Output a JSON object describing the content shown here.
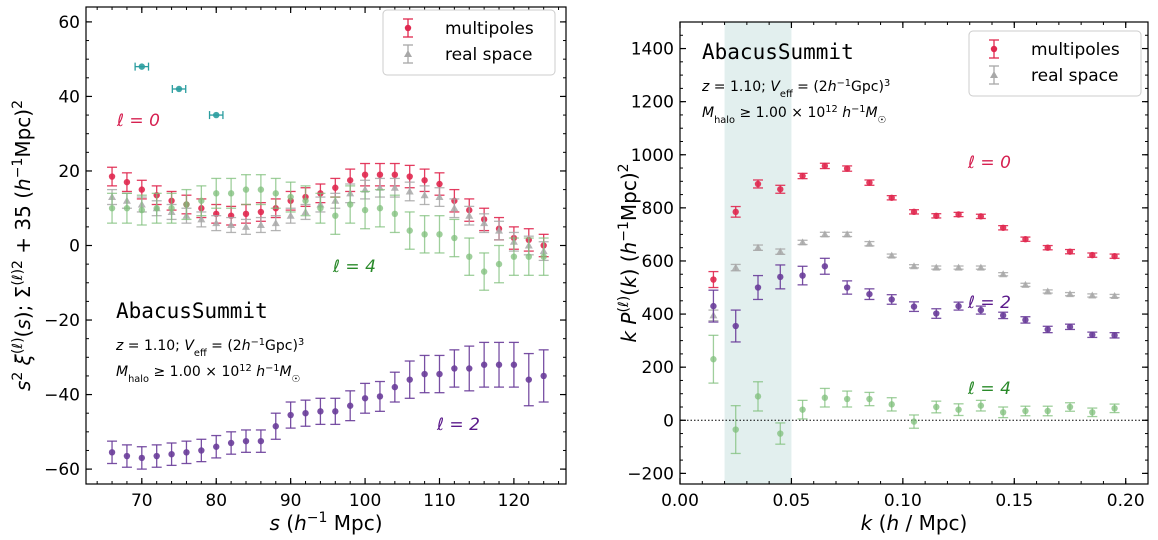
{
  "colors": {
    "multipoles": "#e0284f",
    "real_space": "#a8a8a8",
    "l0_real": "#2a9d9f",
    "l2": "#6a3d9a",
    "l4": "#7fbf7b",
    "l0_label": "#d62050",
    "l2_label": "#5b1a8b",
    "l4_label": "#2a8a2a",
    "shade": "#cfe5e3"
  },
  "chart_data": [
    {
      "type": "scatter",
      "panel": "left",
      "xlabel": "s (h⁻¹ Mpc)",
      "ylabel": "s² ξ^(ℓ)(s); Σ^(ℓ)2 + 35 (h⁻¹Mpc)²",
      "xlim": [
        62.5,
        127
      ],
      "ylim": [
        -64,
        64
      ],
      "xticks": [
        70,
        80,
        90,
        100,
        110,
        120
      ],
      "yticks": [
        -60,
        -40,
        -20,
        0,
        20,
        40,
        60
      ],
      "legend": {
        "position": "top-right",
        "entries": [
          "multipoles",
          "real space"
        ]
      },
      "title_block": {
        "title": "AbacusSummit",
        "line1": "z = 1.10; V_eff = (2h⁻¹Gpc)³",
        "line2": "M_halo ≥ 1.00 × 10¹² h⁻¹M☉"
      },
      "multipole_labels": {
        "l0": "ℓ = 0",
        "l2": "ℓ = 2",
        "l4": "ℓ = 4"
      },
      "series": [
        {
          "name": "ℓ = 0 real space",
          "color_key": "l0_real",
          "marker": "circle",
          "x": [
            70,
            75,
            80
          ],
          "y": [
            48,
            42,
            35
          ],
          "yerr": [
            0,
            0,
            0
          ],
          "xerr": [
            0.9,
            0.9,
            0.9
          ]
        },
        {
          "name": "multipoles ℓ = 0",
          "color_key": "multipoles",
          "marker": "circle",
          "x": [
            66,
            68,
            70,
            72,
            74,
            76,
            78,
            80,
            82,
            84,
            86,
            88,
            90,
            92,
            94,
            96,
            98,
            100,
            102,
            104,
            106,
            108,
            110,
            112,
            114,
            116,
            118,
            120,
            122,
            124
          ],
          "y": [
            18.5,
            17,
            15,
            13.5,
            12,
            11,
            10,
            8.5,
            8,
            8.5,
            9,
            10,
            12,
            13,
            14,
            15.5,
            17.5,
            19,
            19,
            19,
            18.5,
            17.5,
            16.5,
            12,
            9.5,
            7,
            4.5,
            2,
            1.5,
            0
          ],
          "yerr": [
            2.5,
            2.5,
            2.5,
            2.5,
            2.5,
            2.5,
            2.5,
            2.5,
            2.5,
            2.5,
            2.5,
            2.5,
            2.5,
            2.5,
            2.5,
            2.5,
            3,
            3,
            3,
            3,
            3,
            3,
            3,
            3,
            3,
            3,
            3,
            3,
            3,
            3
          ]
        },
        {
          "name": "real space ℓ = 0",
          "color_key": "real_space",
          "marker": "triangle",
          "x": [
            66,
            68,
            70,
            72,
            74,
            76,
            78,
            80,
            82,
            84,
            86,
            88,
            90,
            92,
            94,
            96,
            98,
            100,
            102,
            104,
            106,
            108,
            110,
            112,
            114,
            116,
            118,
            120,
            122,
            124
          ],
          "y": [
            13,
            12,
            11,
            10,
            9,
            8,
            7,
            6,
            5.5,
            5,
            5.5,
            6,
            8,
            9,
            11,
            12,
            14,
            15,
            15.5,
            15.5,
            14.5,
            13.5,
            13,
            10,
            8,
            6,
            4,
            1,
            0,
            -1.5
          ],
          "yerr": [
            2,
            2,
            2,
            2,
            2,
            2,
            2,
            2,
            2,
            2,
            2,
            2,
            2,
            2,
            2,
            2,
            2.5,
            2.5,
            2.5,
            2.5,
            2.5,
            2.5,
            2.5,
            2.5,
            2.5,
            2.5,
            2.5,
            2.5,
            2.5,
            2.5
          ]
        },
        {
          "name": "multipoles ℓ = 4",
          "color_key": "l4",
          "marker": "circle",
          "x": [
            66,
            68,
            70,
            72,
            74,
            76,
            78,
            80,
            82,
            84,
            86,
            88,
            90,
            92,
            94,
            96,
            98,
            100,
            102,
            104,
            106,
            108,
            110,
            112,
            114,
            116,
            118,
            120,
            122,
            124
          ],
          "y": [
            10,
            10,
            9.5,
            10,
            10,
            11,
            12,
            14,
            14,
            15,
            15,
            14,
            13,
            12,
            10,
            8,
            11,
            9.5,
            10,
            8.5,
            4,
            3,
            3,
            2,
            -3,
            -7,
            -5,
            -3,
            -3,
            -3
          ],
          "yerr": [
            4,
            4,
            4,
            4,
            4,
            4,
            4,
            4,
            4,
            4,
            4,
            4,
            4,
            4,
            4,
            5,
            5,
            5,
            5,
            5,
            5,
            5,
            5,
            5,
            5,
            5,
            5,
            5,
            5,
            5
          ]
        },
        {
          "name": "multipoles ℓ = 2",
          "color_key": "l2",
          "marker": "circle",
          "x": [
            66,
            68,
            70,
            72,
            74,
            76,
            78,
            80,
            82,
            84,
            86,
            88,
            90,
            92,
            94,
            96,
            98,
            100,
            102,
            104,
            106,
            108,
            110,
            112,
            114,
            116,
            118,
            120,
            122,
            124
          ],
          "y": [
            -55.5,
            -56.5,
            -57,
            -56.5,
            -56,
            -55.5,
            -55,
            -54,
            -53,
            -52.5,
            -52.5,
            -48.5,
            -45.5,
            -45,
            -44.5,
            -44.5,
            -43,
            -41,
            -40.5,
            -38,
            -36,
            -34.5,
            -34.5,
            -33,
            -33,
            -32,
            -32,
            -32,
            -36,
            -35
          ],
          "yerr": [
            3,
            3,
            3,
            3,
            3,
            3,
            3,
            3,
            3,
            3,
            3,
            3.5,
            3.5,
            3.5,
            3.5,
            3.5,
            4,
            4,
            4,
            4,
            5,
            5,
            5,
            5,
            6,
            6,
            6,
            6,
            7,
            7
          ]
        }
      ]
    },
    {
      "type": "scatter",
      "panel": "right",
      "xlabel": "k (h / Mpc)",
      "ylabel": "k P^(ℓ)(k) (h⁻¹Mpc)²",
      "xlim": [
        0.0,
        0.21
      ],
      "ylim": [
        -240,
        1500
      ],
      "xticks": [
        0.0,
        0.05,
        0.1,
        0.15,
        0.2
      ],
      "xtick_labels": [
        "0.00",
        "0.05",
        "0.10",
        "0.15",
        "0.20"
      ],
      "yticks": [
        -200,
        0,
        200,
        400,
        600,
        800,
        1000,
        1200,
        1400
      ],
      "shaded_band": [
        0.02,
        0.05
      ],
      "zero_line": true,
      "legend": {
        "position": "top-right",
        "entries": [
          "multipoles",
          "real space"
        ]
      },
      "title_block": {
        "title": "AbacusSummit",
        "line1": "z = 1.10; V_eff = (2h⁻¹Gpc)³",
        "line2": "M_halo ≥ 1.00 × 10¹² h⁻¹M☉"
      },
      "multipole_labels": {
        "l0": "ℓ = 0",
        "l2": "ℓ = 2",
        "l4": "ℓ = 4"
      },
      "series": [
        {
          "name": "multipoles ℓ = 0",
          "color_key": "multipoles",
          "marker": "circle",
          "x": [
            0.015,
            0.025,
            0.035,
            0.045,
            0.055,
            0.065,
            0.075,
            0.085,
            0.095,
            0.105,
            0.115,
            0.125,
            0.135,
            0.145,
            0.155,
            0.165,
            0.175,
            0.185,
            0.195
          ],
          "y": [
            530,
            785,
            890,
            870,
            920,
            958,
            948,
            895,
            838,
            785,
            770,
            775,
            768,
            725,
            682,
            650,
            635,
            622,
            618
          ],
          "yerr": [
            30,
            20,
            15,
            15,
            10,
            10,
            10,
            10,
            8,
            8,
            8,
            8,
            8,
            8,
            8,
            8,
            8,
            8,
            8
          ]
        },
        {
          "name": "real space ℓ = 0",
          "color_key": "real_space",
          "marker": "triangle",
          "x": [
            0.015,
            0.025,
            0.035,
            0.045,
            0.055,
            0.065,
            0.075,
            0.085,
            0.095,
            0.105,
            0.115,
            0.125,
            0.135,
            0.145,
            0.155,
            0.165,
            0.175,
            0.185,
            0.195
          ],
          "y": [
            395,
            575,
            650,
            635,
            670,
            700,
            700,
            665,
            620,
            580,
            575,
            575,
            575,
            550,
            510,
            485,
            475,
            470,
            468
          ],
          "yerr": [
            20,
            12,
            10,
            10,
            8,
            8,
            8,
            8,
            6,
            6,
            6,
            6,
            6,
            6,
            6,
            6,
            6,
            6,
            6
          ]
        },
        {
          "name": "multipoles ℓ = 2",
          "color_key": "l2",
          "marker": "circle",
          "x": [
            0.015,
            0.025,
            0.035,
            0.045,
            0.055,
            0.065,
            0.075,
            0.085,
            0.095,
            0.105,
            0.115,
            0.125,
            0.135,
            0.145,
            0.155,
            0.165,
            0.175,
            0.185,
            0.195
          ],
          "y": [
            430,
            355,
            500,
            540,
            545,
            580,
            500,
            475,
            455,
            428,
            402,
            430,
            415,
            395,
            378,
            342,
            352,
            322,
            320
          ],
          "yerr": [
            60,
            60,
            45,
            45,
            35,
            30,
            25,
            20,
            18,
            18,
            18,
            15,
            15,
            12,
            12,
            12,
            10,
            10,
            10
          ]
        },
        {
          "name": "multipoles ℓ = 4",
          "color_key": "l4",
          "marker": "circle",
          "x": [
            0.015,
            0.025,
            0.035,
            0.045,
            0.055,
            0.065,
            0.075,
            0.085,
            0.095,
            0.105,
            0.115,
            0.125,
            0.135,
            0.145,
            0.155,
            0.165,
            0.175,
            0.185,
            0.195
          ],
          "y": [
            230,
            -35,
            90,
            -50,
            40,
            85,
            80,
            80,
            60,
            -5,
            50,
            40,
            55,
            30,
            35,
            35,
            50,
            30,
            45
          ],
          "yerr": [
            90,
            90,
            55,
            40,
            35,
            35,
            30,
            25,
            25,
            25,
            22,
            22,
            20,
            20,
            18,
            18,
            16,
            16,
            16
          ]
        }
      ]
    }
  ]
}
